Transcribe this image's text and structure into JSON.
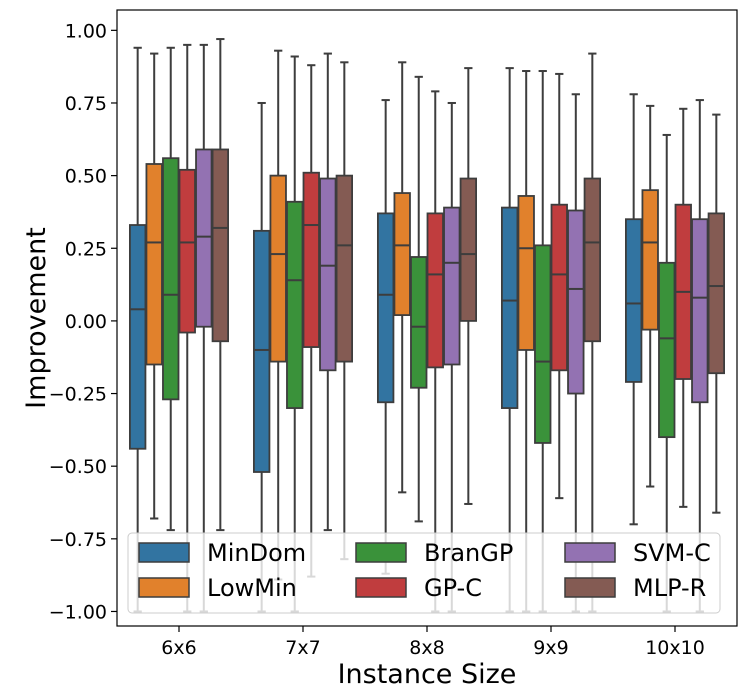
{
  "chart_data": {
    "type": "box",
    "xlabel": "Instance Size",
    "ylabel": "Improvement",
    "ylim": [
      -1.05,
      1.07
    ],
    "yticks": [
      1.0,
      0.75,
      0.5,
      0.25,
      0.0,
      -0.25,
      -0.5,
      -0.75,
      -1.0
    ],
    "ytick_labels": [
      "1.00",
      "0.75",
      "0.50",
      "0.25",
      "0.00",
      "−0.25",
      "−0.50",
      "−0.75",
      "−1.00"
    ],
    "categories": [
      "6x6",
      "7x7",
      "8x8",
      "9x9",
      "10x10"
    ],
    "legend_position": "lower-center",
    "series": [
      {
        "name": "MinDom",
        "color": "#3274a1",
        "boxes": [
          {
            "q1": -0.44,
            "median": 0.04,
            "q3": 0.33,
            "whislo": -1.0,
            "whishi": 0.94
          },
          {
            "q1": -0.52,
            "median": -0.1,
            "q3": 0.31,
            "whislo": -1.0,
            "whishi": 0.75
          },
          {
            "q1": -0.28,
            "median": 0.09,
            "q3": 0.37,
            "whislo": -0.87,
            "whishi": 0.76
          },
          {
            "q1": -0.3,
            "median": 0.07,
            "q3": 0.39,
            "whislo": -1.0,
            "whishi": 0.87
          },
          {
            "q1": -0.21,
            "median": 0.06,
            "q3": 0.35,
            "whislo": -0.7,
            "whishi": 0.78
          }
        ]
      },
      {
        "name": "LowMin",
        "color": "#e1812c",
        "boxes": [
          {
            "q1": -0.15,
            "median": 0.27,
            "q3": 0.54,
            "whislo": -0.68,
            "whishi": 0.92
          },
          {
            "q1": -0.14,
            "median": 0.23,
            "q3": 0.5,
            "whislo": -0.89,
            "whishi": 0.93
          },
          {
            "q1": 0.02,
            "median": 0.26,
            "q3": 0.44,
            "whislo": -0.59,
            "whishi": 0.89
          },
          {
            "q1": -0.1,
            "median": 0.25,
            "q3": 0.43,
            "whislo": -1.0,
            "whishi": 0.86
          },
          {
            "q1": -0.03,
            "median": 0.27,
            "q3": 0.45,
            "whislo": -0.57,
            "whishi": 0.74
          }
        ]
      },
      {
        "name": "BranGP",
        "color": "#3a923a",
        "boxes": [
          {
            "q1": -0.27,
            "median": 0.09,
            "q3": 0.56,
            "whislo": -0.72,
            "whishi": 0.94
          },
          {
            "q1": -0.3,
            "median": 0.14,
            "q3": 0.41,
            "whislo": -1.0,
            "whishi": 0.91
          },
          {
            "q1": -0.23,
            "median": -0.02,
            "q3": 0.22,
            "whislo": -0.69,
            "whishi": 0.84
          },
          {
            "q1": -0.42,
            "median": -0.14,
            "q3": 0.26,
            "whislo": -1.0,
            "whishi": 0.86
          },
          {
            "q1": -0.4,
            "median": -0.06,
            "q3": 0.2,
            "whislo": -1.0,
            "whishi": 0.64
          }
        ]
      },
      {
        "name": "GP-C",
        "color": "#c03d3e",
        "boxes": [
          {
            "q1": -0.04,
            "median": 0.27,
            "q3": 0.52,
            "whislo": -1.0,
            "whishi": 0.95
          },
          {
            "q1": -0.09,
            "median": 0.33,
            "q3": 0.51,
            "whislo": -0.88,
            "whishi": 0.88
          },
          {
            "q1": -0.16,
            "median": 0.16,
            "q3": 0.37,
            "whislo": -1.0,
            "whishi": 0.79
          },
          {
            "q1": -0.17,
            "median": 0.16,
            "q3": 0.4,
            "whislo": -0.61,
            "whishi": 0.85
          },
          {
            "q1": -0.2,
            "median": 0.1,
            "q3": 0.4,
            "whislo": -0.64,
            "whishi": 0.73
          }
        ]
      },
      {
        "name": "SVM-C",
        "color": "#9372b2",
        "boxes": [
          {
            "q1": -0.02,
            "median": 0.29,
            "q3": 0.59,
            "whislo": -1.0,
            "whishi": 0.95
          },
          {
            "q1": -0.17,
            "median": 0.19,
            "q3": 0.49,
            "whislo": -0.72,
            "whishi": 0.92
          },
          {
            "q1": -0.15,
            "median": 0.2,
            "q3": 0.39,
            "whislo": -1.0,
            "whishi": 0.75
          },
          {
            "q1": -0.25,
            "median": 0.11,
            "q3": 0.38,
            "whislo": -1.0,
            "whishi": 0.78
          },
          {
            "q1": -0.28,
            "median": 0.08,
            "q3": 0.35,
            "whislo": -1.0,
            "whishi": 0.76
          }
        ]
      },
      {
        "name": "MLP-R",
        "color": "#845b53",
        "boxes": [
          {
            "q1": -0.07,
            "median": 0.32,
            "q3": 0.59,
            "whislo": -0.72,
            "whishi": 0.97
          },
          {
            "q1": -0.14,
            "median": 0.26,
            "q3": 0.5,
            "whislo": -0.82,
            "whishi": 0.89
          },
          {
            "q1": 0.0,
            "median": 0.23,
            "q3": 0.49,
            "whislo": -0.63,
            "whishi": 0.87
          },
          {
            "q1": -0.07,
            "median": 0.27,
            "q3": 0.49,
            "whislo": -1.0,
            "whishi": 0.92
          },
          {
            "q1": -0.18,
            "median": 0.12,
            "q3": 0.37,
            "whislo": -0.66,
            "whishi": 0.71
          }
        ]
      }
    ]
  }
}
